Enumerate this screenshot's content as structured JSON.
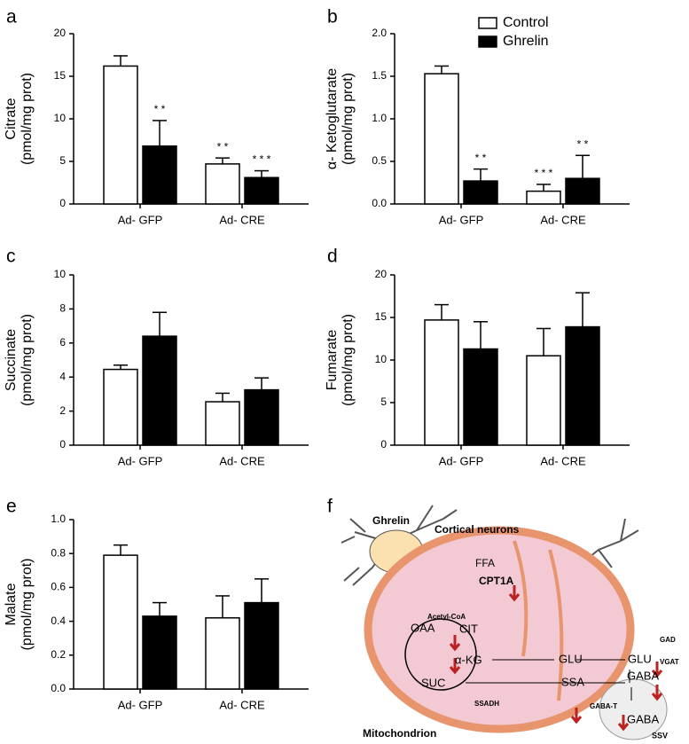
{
  "chart_data": [
    {
      "type": "bar",
      "panel": "a",
      "ylabel": "Citrate",
      "yunit": "(pmol/mg prot)",
      "categories": [
        "Ad- GFP",
        "Ad- CRE"
      ],
      "ylim": [
        0,
        20
      ],
      "yticks": [
        0,
        5,
        10,
        15,
        20
      ],
      "series": [
        {
          "color": "#ffffff",
          "values": [
            16.2,
            4.7
          ],
          "errors": [
            1.2,
            0.7
          ],
          "significance": [
            null,
            "* *"
          ]
        },
        {
          "color": "#000000",
          "values": [
            6.8,
            3.1
          ],
          "errors": [
            3.0,
            0.8
          ],
          "significance": [
            "* *",
            "* * *"
          ]
        }
      ]
    },
    {
      "type": "bar",
      "panel": "b",
      "ylabel": "α- Ketoglutarate",
      "yunit": "(pmol/mg prot)",
      "categories": [
        "Ad- GFP",
        "Ad- CRE"
      ],
      "ylim": [
        0,
        2
      ],
      "yticks": [
        {
          "value": 0,
          "label": "0.0"
        },
        0.5,
        {
          "value": 1,
          "label": "1.0"
        },
        1.5,
        {
          "value": 2,
          "label": "2.0"
        }
      ],
      "legend": "top-right",
      "series": [
        {
          "name": "Control",
          "color": "#ffffff",
          "values": [
            1.53,
            0.15
          ],
          "errors": [
            0.09,
            0.08
          ],
          "significance": [
            null,
            "* * *"
          ]
        },
        {
          "name": "Ghrelin",
          "color": "#000000",
          "values": [
            0.27,
            0.3
          ],
          "errors": [
            0.14,
            0.27
          ],
          "significance": [
            "* *",
            "* *"
          ]
        }
      ]
    },
    {
      "type": "bar",
      "panel": "c",
      "ylabel": "Succinate",
      "yunit": "(pmol/mg prot)",
      "categories": [
        "Ad- GFP",
        "Ad- CRE"
      ],
      "ylim": [
        0,
        10
      ],
      "yticks": [
        0,
        2,
        4,
        6,
        8,
        10
      ],
      "series": [
        {
          "color": "#ffffff",
          "values": [
            4.45,
            2.55
          ],
          "errors": [
            0.25,
            0.5
          ]
        },
        {
          "color": "#000000",
          "values": [
            6.4,
            3.25
          ],
          "errors": [
            1.4,
            0.7
          ]
        }
      ]
    },
    {
      "type": "bar",
      "panel": "d",
      "ylabel": "Fumarate",
      "yunit": "(pmol/mg prot)",
      "categories": [
        "Ad- GFP",
        "Ad- CRE"
      ],
      "ylim": [
        0,
        20
      ],
      "yticks": [
        0,
        5,
        10,
        15,
        20
      ],
      "series": [
        {
          "color": "#ffffff",
          "values": [
            14.7,
            10.5
          ],
          "errors": [
            1.8,
            3.2
          ]
        },
        {
          "color": "#000000",
          "values": [
            11.3,
            13.9
          ],
          "errors": [
            3.2,
            4.0
          ]
        }
      ]
    },
    {
      "type": "bar",
      "panel": "e",
      "ylabel": "Malate",
      "yunit": "(pmol/mg prot)",
      "categories": [
        "Ad- GFP",
        "Ad- CRE"
      ],
      "ylim": [
        0,
        1
      ],
      "yticks": [
        {
          "value": 0,
          "label": "0.0"
        },
        0.2,
        0.4,
        0.6,
        0.8,
        {
          "value": 1,
          "label": "1.0"
        }
      ],
      "series": [
        {
          "color": "#ffffff",
          "values": [
            0.79,
            0.42
          ],
          "errors": [
            0.06,
            0.13
          ]
        },
        {
          "color": "#000000",
          "values": [
            0.43,
            0.51
          ],
          "errors": [
            0.08,
            0.14
          ]
        }
      ]
    }
  ],
  "diagram": {
    "panel": "f",
    "labels": [
      "Ghrelin",
      "Cortical neurons",
      "FFA",
      "CPT1A",
      "Acetyl-CoA",
      "OAA",
      "CIT",
      "α-KG",
      "SUC",
      "GLU",
      "GLU",
      "SSA",
      "GABA",
      "GAD",
      "VGAT",
      "SSADH",
      "GABA-T",
      "GABA",
      "SSV",
      "Mitochondrion"
    ]
  }
}
